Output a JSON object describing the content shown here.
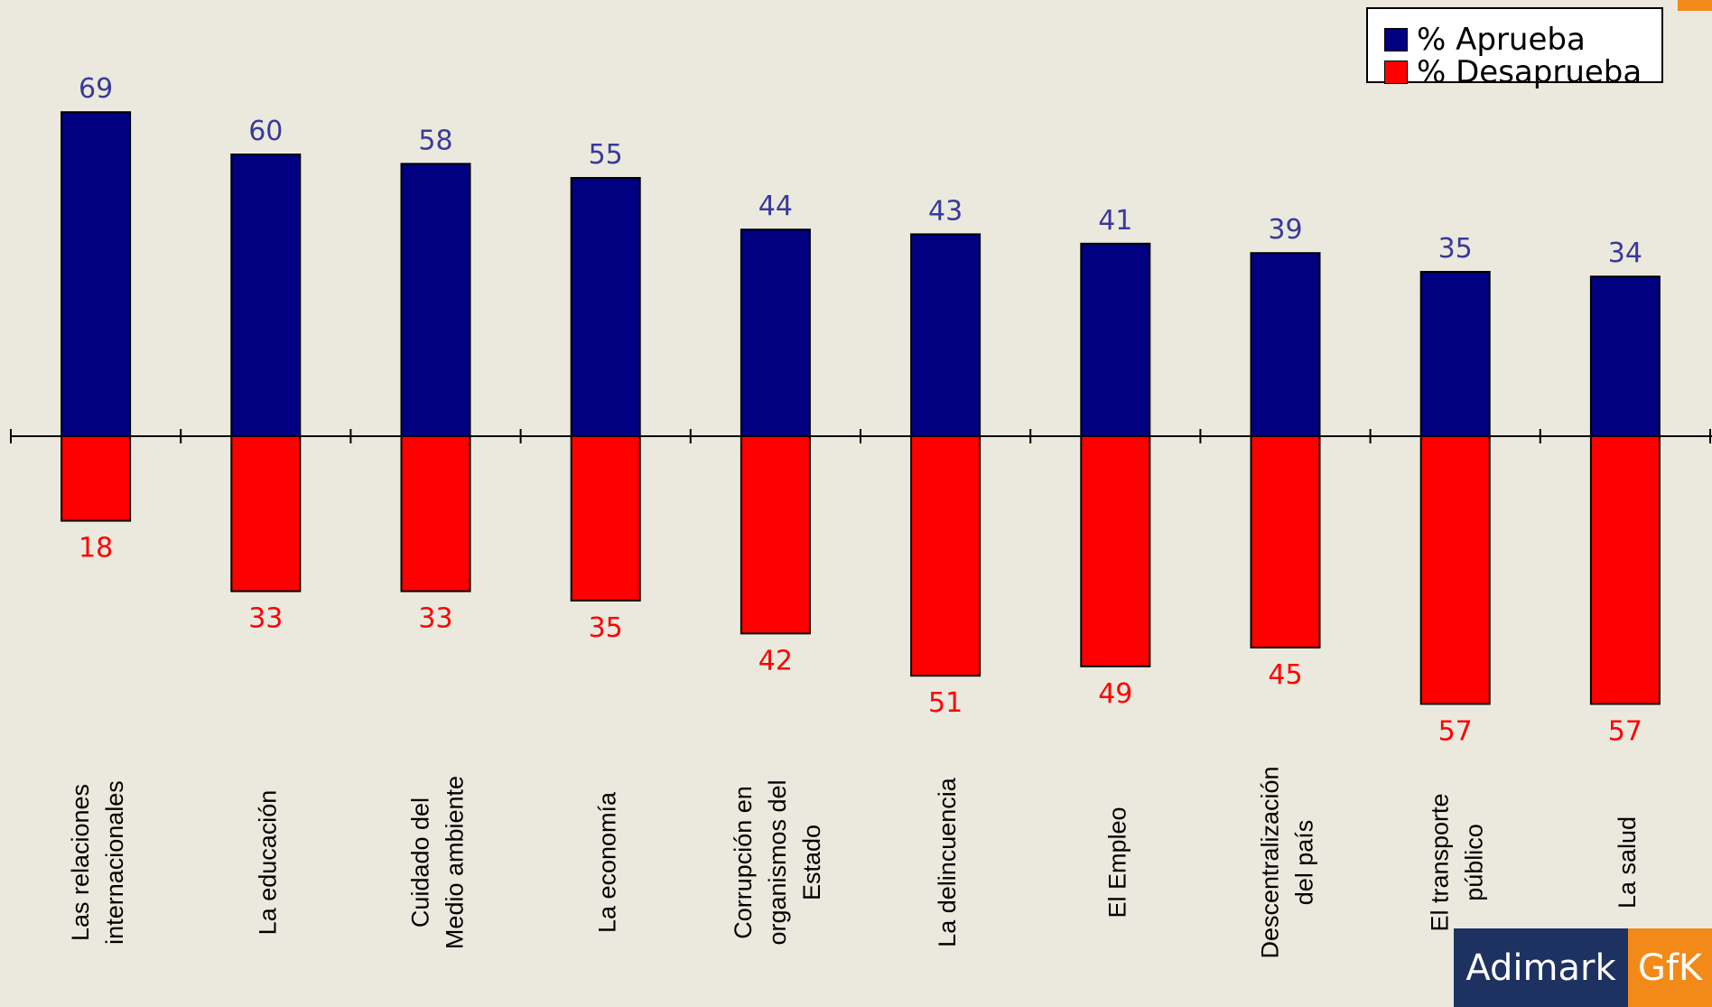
{
  "chart_data": {
    "type": "bar",
    "categories": [
      "Las relaciones internacionales",
      "La educación",
      "Cuidado del Medio ambiente",
      "La economía",
      "Corrupción en organismos del Estado",
      "La delincuencia",
      "El Empleo",
      "Descentralización del país",
      "El transporte público",
      "La salud"
    ],
    "category_lines": [
      [
        "Las relaciones",
        "internacionales"
      ],
      [
        "La educación"
      ],
      [
        "Cuidado del",
        "Medio ambiente"
      ],
      [
        "La economía"
      ],
      [
        "Corrupción en",
        "organismos del",
        "Estado"
      ],
      [
        "La delincuencia"
      ],
      [
        "El Empleo"
      ],
      [
        "Descentralización",
        "del país"
      ],
      [
        "El transporte",
        "público"
      ],
      [
        "La salud"
      ]
    ],
    "series": [
      {
        "name": "% Aprueba",
        "values": [
          69,
          60,
          58,
          55,
          44,
          43,
          41,
          39,
          35,
          34
        ],
        "color": "#000080",
        "direction": "up"
      },
      {
        "name": "% Desaprueba",
        "values": [
          18,
          33,
          33,
          35,
          42,
          51,
          49,
          45,
          57,
          57
        ],
        "color": "#ff0000",
        "direction": "down"
      }
    ],
    "label_colors": {
      "aprueba": "#3a3a9a",
      "desaprueba": "#ff0000"
    },
    "legend_position": "top-right",
    "grid": false
  },
  "legend": {
    "aprueba_label": "% Aprueba",
    "desaprueba_label": "% Desaprueba"
  },
  "branding": {
    "logo_left": "Adimark",
    "logo_right": "GfK",
    "logo_left_color": "#1d3261",
    "logo_right_color": "#f28a1a"
  }
}
